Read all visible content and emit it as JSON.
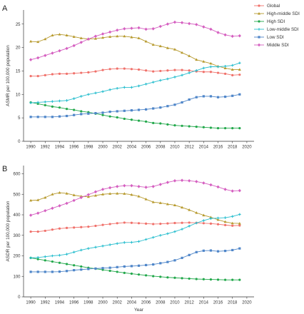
{
  "chart_data": [
    {
      "type": "line",
      "panel_label": "A",
      "xlabel": "",
      "ylabel": "ASMR per 100,000 population",
      "x": [
        1990,
        1991,
        1992,
        1993,
        1994,
        1995,
        1996,
        1997,
        1998,
        1999,
        2000,
        2001,
        2002,
        2003,
        2004,
        2005,
        2006,
        2007,
        2008,
        2009,
        2010,
        2011,
        2012,
        2013,
        2014,
        2015,
        2016,
        2017,
        2018,
        2019
      ],
      "xlim": [
        1989,
        2021
      ],
      "xticks": [
        1990,
        1992,
        1994,
        1996,
        1998,
        2000,
        2002,
        2004,
        2006,
        2008,
        2010,
        2012,
        2014,
        2016,
        2018,
        2020
      ],
      "ylim": [
        0,
        28
      ],
      "yticks": [
        0,
        5,
        10,
        15,
        20,
        25
      ],
      "grid": false,
      "series": [
        {
          "name": "Global",
          "color": "#f0716b",
          "marker": "circle",
          "values": [
            13.9,
            13.9,
            14.1,
            14.3,
            14.4,
            14.4,
            14.5,
            14.6,
            14.7,
            14.9,
            15.2,
            15.4,
            15.5,
            15.5,
            15.4,
            15.3,
            15.1,
            14.9,
            15.0,
            15.1,
            15.2,
            15.2,
            15.1,
            14.9,
            14.8,
            14.8,
            14.6,
            14.4,
            14.1,
            14.2
          ]
        },
        {
          "name": "High-middle SDI",
          "color": "#b79a2e",
          "marker": "triangle",
          "values": [
            21.3,
            21.2,
            21.8,
            22.6,
            22.8,
            22.6,
            22.3,
            22.0,
            21.8,
            21.9,
            22.1,
            22.3,
            22.4,
            22.4,
            22.2,
            22.0,
            21.3,
            20.6,
            20.3,
            19.9,
            19.6,
            18.9,
            18.2,
            17.4,
            17.0,
            16.6,
            16.0,
            15.6,
            15.3,
            15.3
          ]
        },
        {
          "name": "High SDI",
          "color": "#22a84b",
          "marker": "circle",
          "values": [
            8.3,
            8.0,
            7.7,
            7.4,
            7.2,
            6.9,
            6.7,
            6.4,
            6.2,
            5.9,
            5.6,
            5.3,
            5.1,
            4.8,
            4.6,
            4.4,
            4.2,
            3.9,
            3.8,
            3.6,
            3.4,
            3.3,
            3.2,
            3.1,
            3.0,
            2.9,
            2.8,
            2.8,
            2.8,
            2.8
          ]
        },
        {
          "name": "Low-middle SDI",
          "color": "#2bbfcf",
          "marker": "cross",
          "values": [
            8.2,
            8.3,
            8.4,
            8.5,
            8.6,
            8.7,
            9.1,
            9.6,
            10.0,
            10.3,
            10.6,
            11.0,
            11.3,
            11.5,
            11.5,
            11.8,
            12.2,
            12.6,
            13.0,
            13.3,
            13.7,
            14.1,
            14.6,
            15.1,
            15.6,
            15.9,
            15.9,
            16.0,
            16.2,
            16.7
          ]
        },
        {
          "name": "Low SDI",
          "color": "#4f86c9",
          "marker": "square",
          "values": [
            5.2,
            5.2,
            5.2,
            5.2,
            5.3,
            5.4,
            5.6,
            5.8,
            5.9,
            6.0,
            6.1,
            6.3,
            6.4,
            6.5,
            6.6,
            6.7,
            6.8,
            7.0,
            7.2,
            7.5,
            7.8,
            8.3,
            8.9,
            9.4,
            9.6,
            9.6,
            9.4,
            9.5,
            9.7,
            10.0
          ]
        },
        {
          "name": "Middle SDI",
          "color": "#d55fc0",
          "marker": "diamond",
          "values": [
            17.4,
            17.8,
            18.3,
            18.8,
            19.3,
            19.8,
            20.4,
            21.1,
            21.8,
            22.4,
            22.9,
            23.3,
            23.7,
            24.0,
            24.1,
            24.2,
            23.9,
            24.0,
            24.5,
            25.0,
            25.4,
            25.3,
            25.1,
            24.9,
            24.4,
            23.9,
            23.2,
            22.7,
            22.4,
            22.5
          ]
        }
      ]
    },
    {
      "type": "line",
      "panel_label": "B",
      "xlabel": "Year",
      "ylabel": "ASDR per 100,000 population",
      "x": [
        1990,
        1991,
        1992,
        1993,
        1994,
        1995,
        1996,
        1997,
        1998,
        1999,
        2000,
        2001,
        2002,
        2003,
        2004,
        2005,
        2006,
        2007,
        2008,
        2009,
        2010,
        2011,
        2012,
        2013,
        2014,
        2015,
        2016,
        2017,
        2018,
        2019
      ],
      "xlim": [
        1989,
        2021
      ],
      "xticks": [
        1990,
        1992,
        1994,
        1996,
        1998,
        2000,
        2002,
        2004,
        2006,
        2008,
        2010,
        2012,
        2014,
        2016,
        2018,
        2020
      ],
      "ylim": [
        0,
        640
      ],
      "yticks": [
        0,
        100,
        200,
        300,
        400,
        500,
        600
      ],
      "grid": false,
      "series": [
        {
          "name": "Global",
          "color": "#f0716b",
          "marker": "circle",
          "values": [
            318,
            318,
            322,
            328,
            333,
            336,
            338,
            340,
            342,
            346,
            351,
            355,
            359,
            362,
            361,
            359,
            357,
            355,
            356,
            358,
            360,
            361,
            362,
            361,
            359,
            357,
            354,
            350,
            347,
            348
          ]
        },
        {
          "name": "High-middle SDI",
          "color": "#b79a2e",
          "marker": "triangle",
          "values": [
            470,
            472,
            484,
            500,
            508,
            504,
            496,
            490,
            488,
            494,
            500,
            503,
            504,
            503,
            498,
            490,
            476,
            462,
            458,
            452,
            447,
            436,
            424,
            410,
            398,
            388,
            376,
            366,
            359,
            358
          ]
        },
        {
          "name": "High SDI",
          "color": "#22a84b",
          "marker": "circle",
          "values": [
            190,
            184,
            178,
            172,
            166,
            160,
            154,
            148,
            142,
            137,
            132,
            127,
            122,
            117,
            113,
            109,
            105,
            101,
            98,
            95,
            93,
            91,
            89,
            87,
            86,
            85,
            84,
            83,
            83,
            83
          ]
        },
        {
          "name": "Low-middle SDI",
          "color": "#2bbfcf",
          "marker": "cross",
          "values": [
            190,
            192,
            196,
            200,
            203,
            208,
            218,
            228,
            236,
            242,
            248,
            254,
            260,
            265,
            266,
            270,
            280,
            290,
            300,
            308,
            318,
            330,
            345,
            360,
            372,
            382,
            384,
            386,
            392,
            402
          ]
        },
        {
          "name": "Low SDI",
          "color": "#4f86c9",
          "marker": "square",
          "values": [
            122,
            122,
            122,
            122,
            123,
            126,
            130,
            133,
            136,
            138,
            140,
            142,
            145,
            148,
            150,
            152,
            155,
            158,
            164,
            170,
            178,
            190,
            204,
            218,
            225,
            226,
            222,
            224,
            228,
            236
          ]
        },
        {
          "name": "Middle SDI",
          "color": "#d55fc0",
          "marker": "diamond",
          "values": [
            398,
            408,
            420,
            432,
            444,
            456,
            470,
            484,
            498,
            512,
            524,
            532,
            538,
            542,
            542,
            538,
            534,
            538,
            548,
            558,
            566,
            568,
            566,
            562,
            555,
            546,
            536,
            524,
            516,
            518
          ]
        }
      ]
    }
  ],
  "legend": {
    "position": "top-right",
    "items": [
      {
        "label": "Global",
        "color": "#f0716b",
        "marker": "circle"
      },
      {
        "label": "High-middle SDI",
        "color": "#b79a2e",
        "marker": "triangle"
      },
      {
        "label": "High SDI",
        "color": "#22a84b",
        "marker": "circle"
      },
      {
        "label": "Low-middle SDI",
        "color": "#2bbfcf",
        "marker": "cross"
      },
      {
        "label": "Low SDI",
        "color": "#4f86c9",
        "marker": "square"
      },
      {
        "label": "Middle SDI",
        "color": "#d55fc0",
        "marker": "diamond"
      }
    ]
  }
}
